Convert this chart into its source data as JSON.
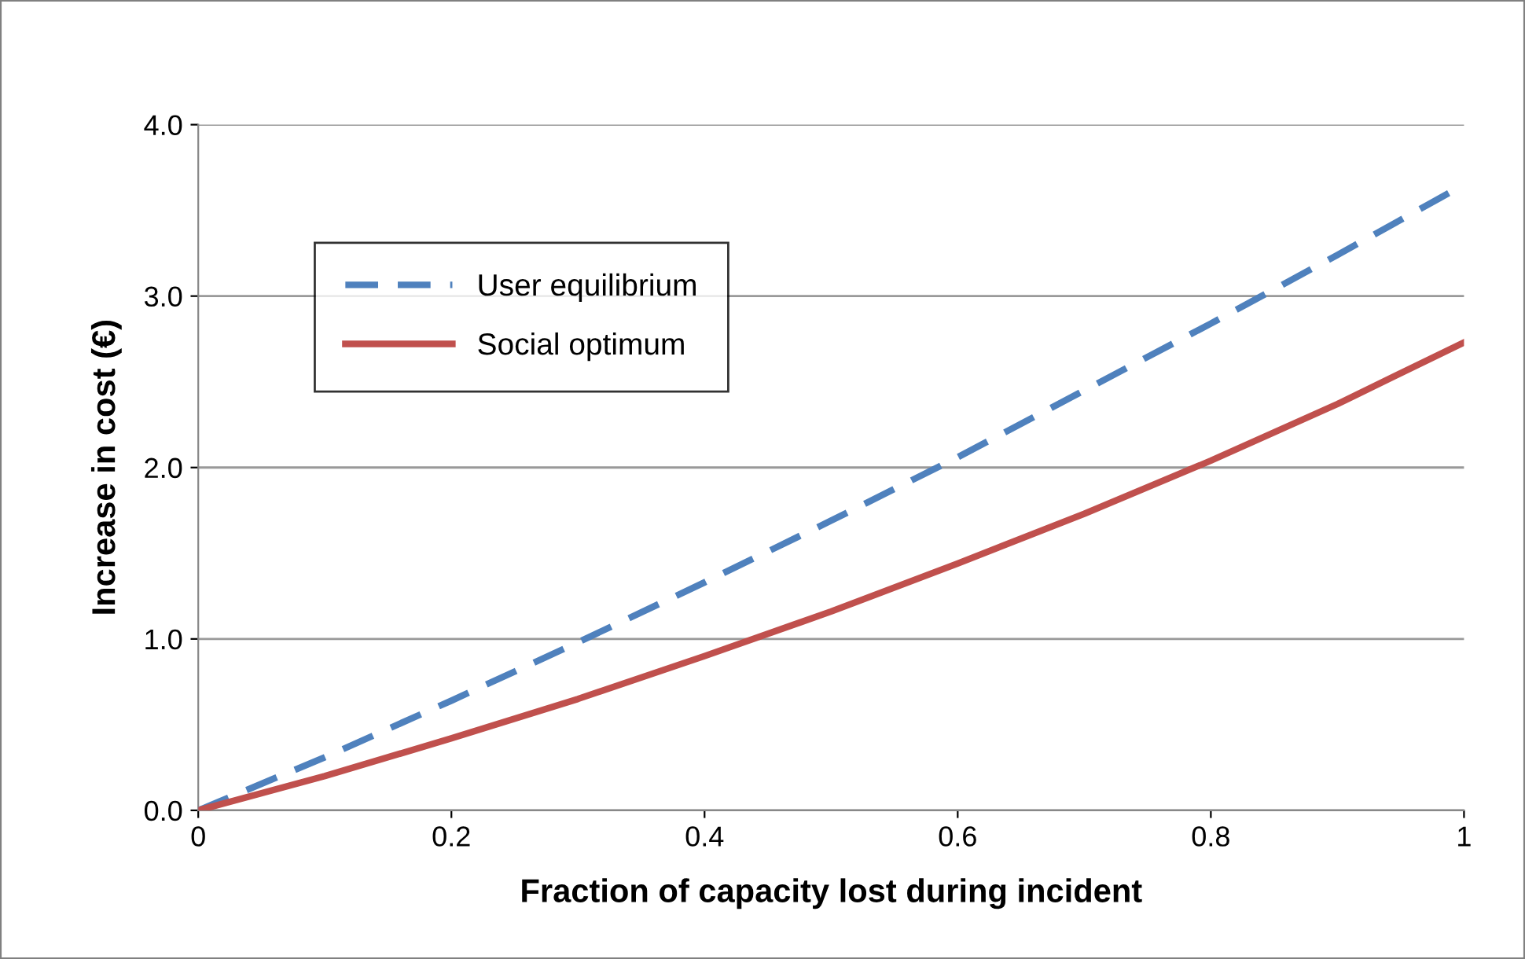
{
  "chart_data": {
    "type": "line",
    "xlabel": "Fraction of capacity lost during incident",
    "ylabel": "Increase in cost (€)",
    "x": [
      0,
      0.1,
      0.2,
      0.3,
      0.4,
      0.5,
      0.6,
      0.7,
      0.8,
      0.9,
      1
    ],
    "series": [
      {
        "name": "User equilibrium",
        "color": "#4f81bd",
        "line_style": "dashed",
        "values": [
          0,
          0.31,
          0.64,
          0.98,
          1.33,
          1.69,
          2.06,
          2.45,
          2.84,
          3.24,
          3.65
        ]
      },
      {
        "name": "Social optimum",
        "color": "#c0504d",
        "line_style": "solid",
        "values": [
          0,
          0.2,
          0.42,
          0.65,
          0.9,
          1.16,
          1.44,
          1.73,
          2.04,
          2.37,
          2.73
        ]
      }
    ],
    "xlim": [
      0,
      1
    ],
    "xticks": [
      0,
      0.2,
      0.4,
      0.6,
      0.8,
      1
    ],
    "ylim": [
      0,
      4
    ],
    "yticks": [
      {
        "value": 0,
        "label": "0.0"
      },
      {
        "value": 1,
        "label": "1.0"
      },
      {
        "value": 2,
        "label": "2.0"
      },
      {
        "value": 3,
        "label": "3.0"
      },
      {
        "value": 4,
        "label": "4.0"
      }
    ],
    "grid": "y",
    "legend": "top left",
    "marker": "none"
  }
}
